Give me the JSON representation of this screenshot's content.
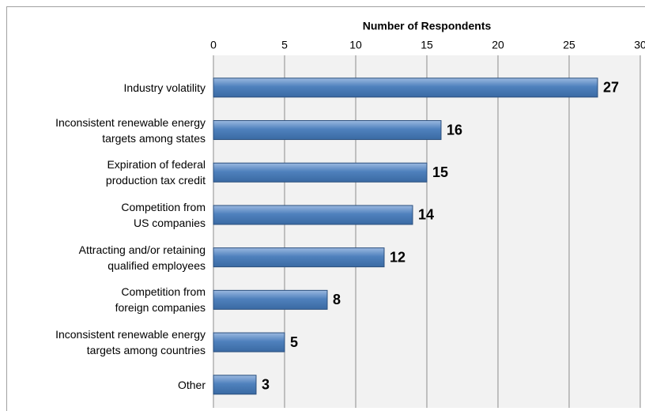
{
  "chart_data": {
    "type": "bar",
    "orientation": "horizontal",
    "xlabel": "Number of Respondents",
    "categories": [
      "Industry volatility",
      "Inconsistent renewable energy\ntargets among states",
      "Expiration of federal\nproduction tax credit",
      "Competition from\nUS companies",
      "Attracting and/or retaining\nqualified employees",
      "Competition from\nforeign companies",
      "Inconsistent renewable energy\ntargets among countries",
      "Other"
    ],
    "values": [
      27,
      16,
      15,
      14,
      12,
      8,
      5,
      3
    ],
    "color": "#4f81bd",
    "xlim": [
      0,
      30
    ],
    "xticks": [
      0,
      5,
      10,
      15,
      20,
      25,
      30
    ],
    "grid": true
  }
}
